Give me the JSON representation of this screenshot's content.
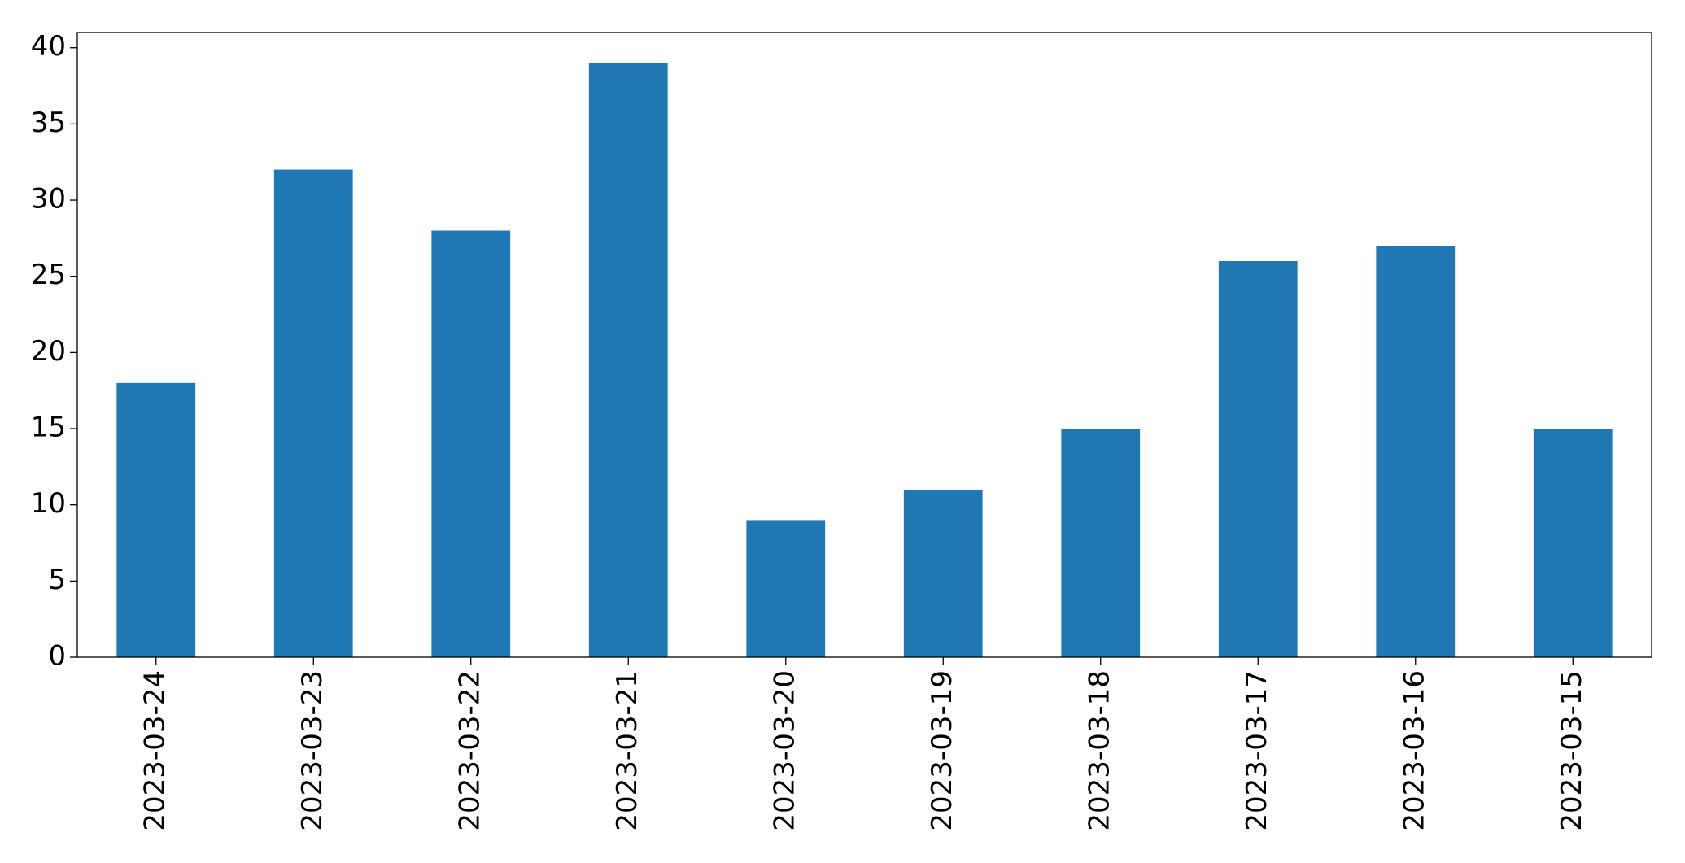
{
  "chart_data": {
    "type": "bar",
    "categories": [
      "2023-03-24",
      "2023-03-23",
      "2023-03-22",
      "2023-03-21",
      "2023-03-20",
      "2023-03-19",
      "2023-03-18",
      "2023-03-17",
      "2023-03-16",
      "2023-03-15"
    ],
    "values": [
      18,
      32,
      28,
      39,
      9,
      11,
      15,
      26,
      27,
      15
    ],
    "color": "#1f77b4",
    "ylim": [
      0,
      41
    ],
    "yticks": [
      0,
      5,
      10,
      15,
      20,
      25,
      30,
      35,
      40
    ],
    "grid": false
  }
}
